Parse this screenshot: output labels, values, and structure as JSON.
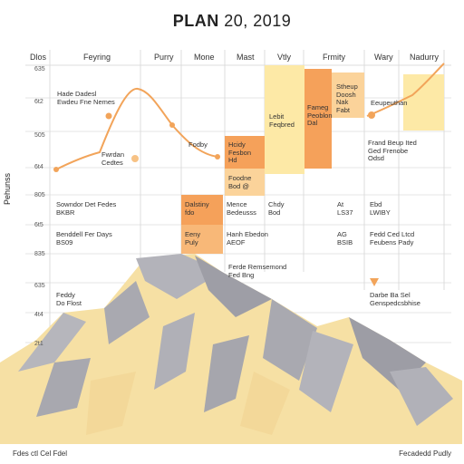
{
  "title_bold": "PLAN",
  "title_rest": " 20, 2019",
  "columns": [
    "Dlos",
    "Feyring",
    "Purry",
    "Mone",
    "Mast",
    "Vtly",
    "Frmity",
    "Wary",
    "Nadurry"
  ],
  "y_ticks": [
    "635",
    "6t2",
    "505",
    "6t4",
    "805",
    "6t5",
    "835",
    "635",
    "4t4",
    "2t1"
  ],
  "side_label": "Pehunss",
  "annotations": [
    {
      "id": "a1",
      "text": "Hade Dadesl\nEwdeu Fne Nemes"
    },
    {
      "id": "a2",
      "text": "Fwrdan\nCedtes"
    },
    {
      "id": "a3",
      "text": "Fodby"
    },
    {
      "id": "a4",
      "text": "Hcidy\nFesbon\nHd"
    },
    {
      "id": "a5",
      "text": "Lebit\nFeqbred"
    },
    {
      "id": "a6",
      "text": "Fameg\nPeoblon\nDal"
    },
    {
      "id": "a7",
      "text": "Stheup\nDoosh\nNak\nFabt"
    },
    {
      "id": "a8",
      "text": "Eeupeuthan"
    },
    {
      "id": "a9",
      "text": "Frand Beup Ited\nGed Frenobe\nOdsd"
    },
    {
      "id": "a10",
      "text": "Foodne\nBod   @"
    },
    {
      "id": "a11",
      "text": "Sowndor Det Fedes\nBKBR"
    },
    {
      "id": "a12",
      "text": "Dalstiny\nfdo"
    },
    {
      "id": "a13",
      "text": "Mence\nBedeusss"
    },
    {
      "id": "a14",
      "text": "Chdy\nBod"
    },
    {
      "id": "a15",
      "text": "At\nLS37"
    },
    {
      "id": "a16",
      "text": "Ebd\nLWIBY"
    },
    {
      "id": "a17",
      "text": "Benddell Fer Days\nBS09"
    },
    {
      "id": "a18",
      "text": "Eeny\nPuly"
    },
    {
      "id": "a19",
      "text": "Hanh Ebedon\nAEOF"
    },
    {
      "id": "a20",
      "text": "AG\nBSIB"
    },
    {
      "id": "a21",
      "text": "Fedd Ced Ltcd\nFeubens Pady"
    },
    {
      "id": "a22",
      "text": "Ferde Remsemond\nFed Bng"
    },
    {
      "id": "a23",
      "text": "Feddy\nDo Flost"
    },
    {
      "id": "a24",
      "text": "Darbe Ba Sel\nGenspedcsbhise"
    }
  ],
  "footer_left": "Fdes ctl Cel Fdel",
  "footer_right": "Fecadedd Pudly",
  "colors": {
    "grid": "#dcdcdc",
    "line": "#f2a45a",
    "orange_dark": "#f5a15a",
    "orange_light": "#fbd39a",
    "yellow": "#fde9a6",
    "mountain_light": "#f6e0a4",
    "mountain_gray": "#a9a9b0"
  }
}
